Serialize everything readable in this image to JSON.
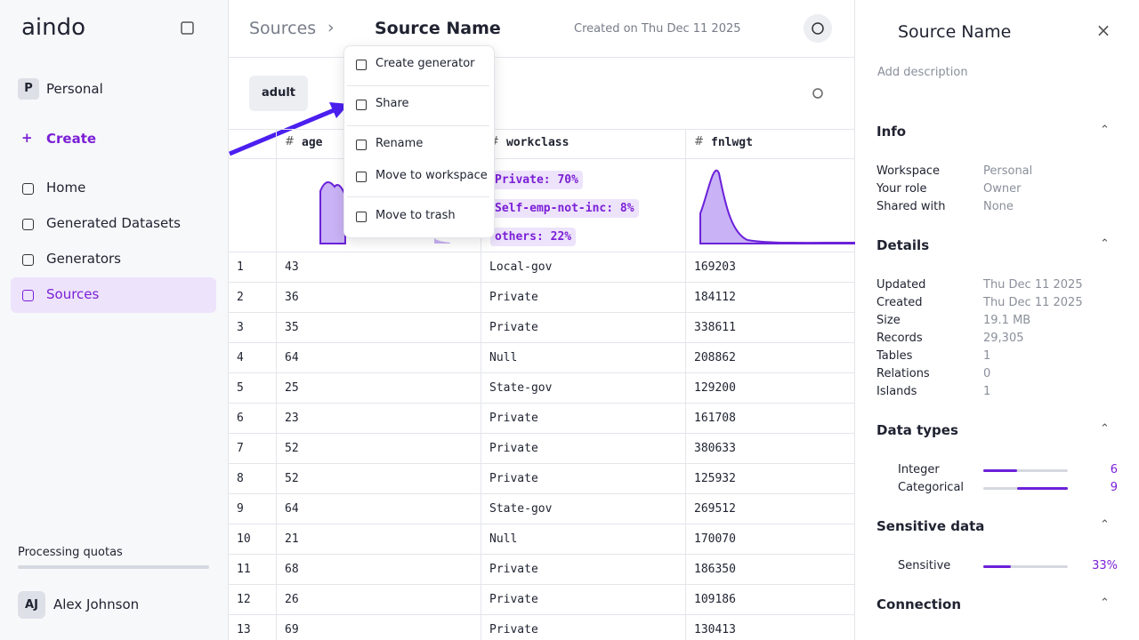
{
  "sidebar": {
    "logo": "aindo",
    "workspace": {
      "avatar": "P",
      "name": "Personal"
    },
    "create": "Create",
    "nav": [
      "Home",
      "Generated Datasets",
      "Generators",
      "Sources"
    ],
    "quotas": "Processing quotas",
    "user": {
      "initials": "AJ",
      "name": "Alex Johnson"
    }
  },
  "header": {
    "breadcrumb": "Sources",
    "title": "Source Name",
    "created": "Created on Thu Dec 11 2025"
  },
  "tab": "adult",
  "table": {
    "columns": [
      "age",
      "workclass",
      "fnlwgt"
    ],
    "workclass_stats": [
      "Private: 70%",
      "Self-emp-not-inc: 8%",
      "others: 22%"
    ],
    "rows": [
      [
        "1",
        "43",
        "Local-gov",
        "169203"
      ],
      [
        "2",
        "36",
        "Private",
        "184112"
      ],
      [
        "3",
        "35",
        "Private",
        "338611"
      ],
      [
        "4",
        "64",
        "Null",
        "208862"
      ],
      [
        "5",
        "25",
        "State-gov",
        "129200"
      ],
      [
        "6",
        "23",
        "Private",
        "161708"
      ],
      [
        "7",
        "52",
        "Private",
        "380633"
      ],
      [
        "8",
        "52",
        "Private",
        "125932"
      ],
      [
        "9",
        "64",
        "State-gov",
        "269512"
      ],
      [
        "10",
        "21",
        "Null",
        "170070"
      ],
      [
        "11",
        "68",
        "Private",
        "186350"
      ],
      [
        "12",
        "26",
        "Private",
        "109186"
      ],
      [
        "13",
        "69",
        "Private",
        "130413"
      ]
    ]
  },
  "menu": [
    "Create generator",
    "Share",
    "Rename",
    "Move to workspace",
    "Move to trash"
  ],
  "panel": {
    "title": "Source Name",
    "description": "Add description",
    "info": {
      "title": "Info",
      "rows": [
        [
          "Workspace",
          "Personal"
        ],
        [
          "Your role",
          "Owner"
        ],
        [
          "Shared with",
          "None"
        ]
      ]
    },
    "details": {
      "title": "Details",
      "rows": [
        [
          "Updated",
          "Thu Dec 11 2025"
        ],
        [
          "Created",
          "Thu Dec 11 2025"
        ],
        [
          "Size",
          "19.1 MB"
        ],
        [
          "Records",
          "29,305"
        ],
        [
          "Tables",
          "1"
        ],
        [
          "Relations",
          "0"
        ],
        [
          "Islands",
          "1"
        ]
      ]
    },
    "data_types": {
      "title": "Data types",
      "rows": [
        {
          "label": "Integer",
          "value": 6
        },
        {
          "label": "Categorical",
          "value": 9
        }
      ]
    },
    "sensitive": {
      "title": "Sensitive data",
      "rows": [
        {
          "label": "Sensitive",
          "value": 33,
          "value_label": "33%"
        }
      ]
    },
    "connection": {
      "title": "Connection"
    }
  }
}
